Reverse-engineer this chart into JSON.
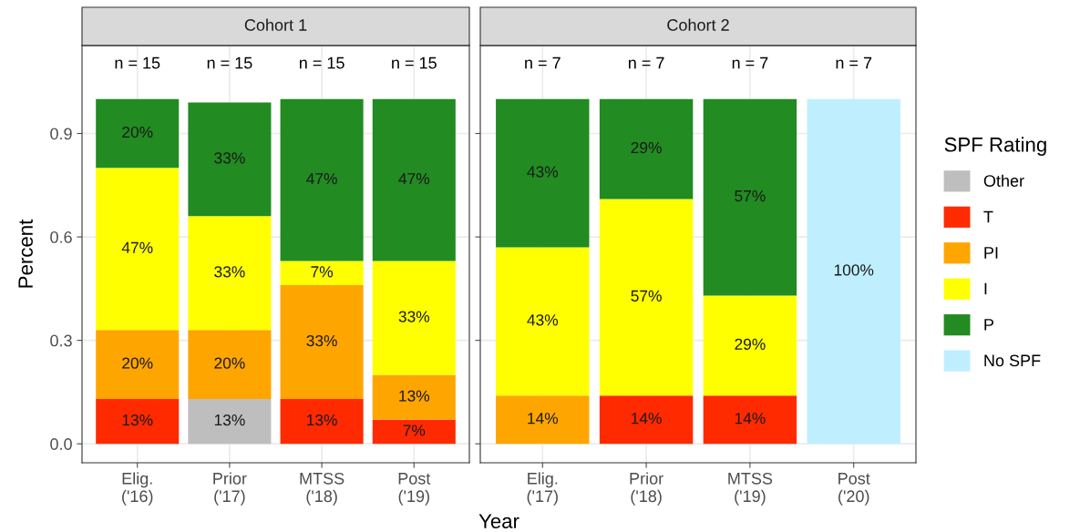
{
  "chart_data": [
    {
      "type": "bar",
      "title": "Cohort 1",
      "xlabel": "Year",
      "ylabel": "Percent",
      "stacked": true,
      "grid": true,
      "legend": "right",
      "categories": [
        "Elig.\n('16)",
        "Prior\n('17)",
        "MTSS\n('18)",
        "Post\n('19)"
      ],
      "ylim": [
        -0.055,
        1.155
      ],
      "yticks": [
        {
          "value": 0,
          "label": "0.0"
        },
        0.3,
        0.6,
        0.9
      ],
      "annotations": [
        "n = 15",
        "n = 15",
        "n = 15",
        "n = 15"
      ],
      "series": [
        {
          "name": "Other",
          "color": "#bebebe",
          "values": [
            null,
            0.13,
            null,
            null
          ],
          "value_labels": [
            null,
            "13%",
            null,
            null
          ]
        },
        {
          "name": "T",
          "color": "#ff2a00",
          "values": [
            0.13,
            null,
            0.13,
            0.07
          ],
          "value_labels": [
            "13%",
            null,
            "13%",
            "7%"
          ]
        },
        {
          "name": "PI",
          "color": "#ffa500",
          "values": [
            0.2,
            0.2,
            0.33,
            0.13
          ],
          "value_labels": [
            "20%",
            "20%",
            "33%",
            "13%"
          ]
        },
        {
          "name": "I",
          "color": "#ffff00",
          "values": [
            0.47,
            0.33,
            0.07,
            0.33
          ],
          "value_labels": [
            "47%",
            "33%",
            "7%",
            "33%"
          ]
        },
        {
          "name": "P",
          "color": "#228b22",
          "values": [
            0.2,
            0.33,
            0.47,
            0.47
          ],
          "value_labels": [
            "20%",
            "33%",
            "47%",
            "47%"
          ]
        }
      ]
    },
    {
      "type": "bar",
      "title": "Cohort 2",
      "legend_title": "SPF Rating",
      "stacked": true,
      "grid": true,
      "legend": "right",
      "tick_labels": "x",
      "categories": [
        "Elig.\n('17)",
        "Prior\n('18)",
        "MTSS\n('19)",
        "Post\n('20)"
      ],
      "ylim": [
        -0.055,
        1.155
      ],
      "yticks": [
        0,
        0.3,
        0.6,
        0.9
      ],
      "annotations": [
        "n = 7",
        "n = 7",
        "n = 7",
        "n = 7"
      ],
      "series": [
        {
          "name": "T",
          "color": "#ff2a00",
          "values": [
            null,
            0.14,
            0.14,
            null
          ],
          "value_labels": [
            null,
            "14%",
            "14%",
            null
          ]
        },
        {
          "name": "PI",
          "color": "#ffa500",
          "values": [
            0.14,
            null,
            null,
            null
          ],
          "value_labels": [
            "14%",
            null,
            null,
            null
          ]
        },
        {
          "name": "I",
          "color": "#ffff00",
          "values": [
            0.43,
            0.57,
            0.29,
            null
          ],
          "value_labels": [
            "43%",
            "57%",
            "29%",
            null
          ]
        },
        {
          "name": "P",
          "color": "#228b22",
          "values": [
            0.43,
            0.29,
            0.57,
            null
          ],
          "value_labels": [
            "43%",
            "29%",
            "57%",
            null
          ]
        },
        {
          "name": "No SPF",
          "color": "#bfefff",
          "values": [
            null,
            null,
            null,
            1.0
          ],
          "value_labels": [
            null,
            null,
            null,
            "100%"
          ]
        }
      ]
    }
  ]
}
